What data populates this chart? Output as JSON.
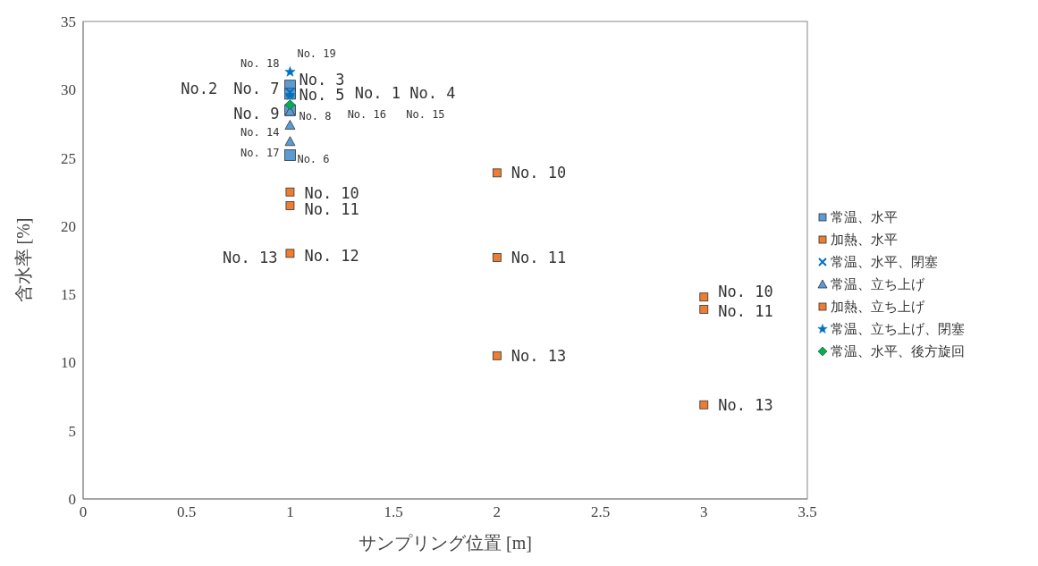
{
  "chart_data": {
    "type": "scatter",
    "xlabel": "サンプリング位置 [m]",
    "ylabel": "含水率 [%]",
    "xlim": [
      0,
      3.5
    ],
    "xticks": [
      0,
      0.5,
      1,
      1.5,
      2,
      2.5,
      3,
      3.5
    ],
    "ylim": [
      0,
      35
    ],
    "yticks": [
      0,
      5,
      10,
      15,
      20,
      25,
      30,
      35
    ],
    "grid": false,
    "legend": "right",
    "series": [
      {
        "name": "常温、水平",
        "color": "#5b9bd5",
        "marker": "square",
        "x": [
          1,
          1,
          1,
          1
        ],
        "values": [
          30.3,
          29.7,
          28.5,
          25.2
        ]
      },
      {
        "name": "加熱、水平",
        "color": "#ed7d31",
        "marker": "square",
        "x": [
          1,
          1,
          1,
          2,
          2,
          2
        ],
        "values": [
          22.5,
          21.5,
          18.0,
          23.9,
          17.7,
          10.5
        ]
      },
      {
        "name": "常温、水平、閉塞",
        "color": "#0070c0",
        "marker": "cross",
        "x": [
          1
        ],
        "values": [
          29.8
        ]
      },
      {
        "name": "常温、立ち上げ",
        "color": "#5b9bd5",
        "marker": "triangle",
        "x": [
          1,
          1,
          1
        ],
        "values": [
          28.4,
          27.4,
          26.2
        ]
      },
      {
        "name": "加熱、立ち上げ",
        "color": "#ed7d31",
        "marker": "square",
        "x": [
          3,
          3,
          3
        ],
        "values": [
          14.8,
          13.9,
          6.9
        ]
      },
      {
        "name": "常温、立ち上げ、閉塞",
        "color": "#0070c0",
        "marker": "star",
        "x": [
          1,
          1
        ],
        "values": [
          31.3,
          29.6
        ]
      },
      {
        "name": "常温、水平、後方旋回",
        "color": "#00b050",
        "marker": "diamond",
        "x": [
          1
        ],
        "values": [
          28.9
        ]
      }
    ],
    "annotations": [
      {
        "text": "No. 19",
        "x": 1,
        "y": 31.3
      },
      {
        "text": "No. 18",
        "x": 1,
        "y": 31.3
      },
      {
        "text": "No. 3",
        "x": 1,
        "y": 30.3
      },
      "No.2",
      {
        "text": "No. 7",
        "x": 1,
        "y": 30.3
      },
      {
        "text": "No. 5",
        "x": 1,
        "y": 29.7
      },
      "No. 1",
      "No. 4",
      {
        "text": "No. 9",
        "x": 1,
        "y": 28.5
      },
      {
        "text": "No. 8",
        "x": 1,
        "y": 28.4
      },
      "No. 16",
      "No. 15",
      {
        "text": "No. 14",
        "x": 1,
        "y": 27.4
      },
      {
        "text": "No. 17",
        "x": 1,
        "y": 26.2
      },
      {
        "text": "No. 6",
        "x": 1,
        "y": 25.2
      },
      {
        "text": "No. 10",
        "x": 1,
        "y": 22.5
      },
      {
        "text": "No. 11",
        "x": 1,
        "y": 21.5
      },
      {
        "text": "No. 13",
        "x": 1,
        "y": 18.0
      },
      {
        "text": "No. 12",
        "x": 1,
        "y": 18.0
      },
      {
        "text": "No. 10",
        "x": 2,
        "y": 23.9
      },
      {
        "text": "No. 11",
        "x": 2,
        "y": 17.7
      },
      {
        "text": "No. 13",
        "x": 2,
        "y": 10.5
      },
      {
        "text": "No. 10",
        "x": 3,
        "y": 14.8
      },
      {
        "text": "No. 11",
        "x": 3,
        "y": 13.9
      },
      {
        "text": "No. 13",
        "x": 3,
        "y": 6.9
      }
    ]
  }
}
